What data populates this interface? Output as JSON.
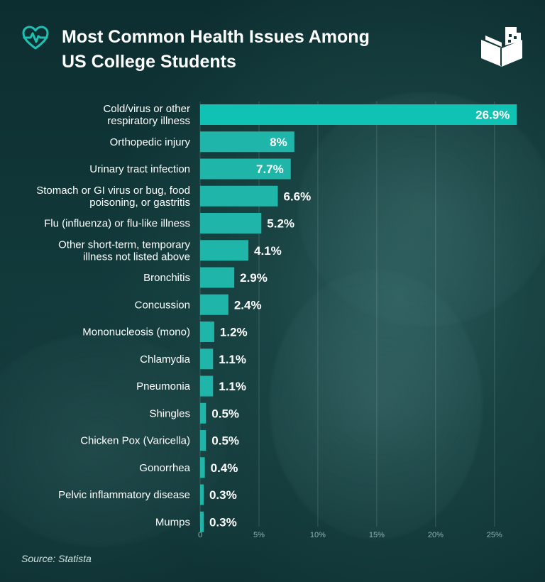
{
  "header": {
    "title_line1": "Most Common Health Issues Among",
    "title_line2": "US College Students"
  },
  "icons": {
    "header_left": "heart-pulse-icon",
    "header_right": "book-brand-icon"
  },
  "colors": {
    "bar": "#1fb5a8",
    "bar_highlight": "#10c2b4",
    "label": "#ffffff",
    "value": "#ffffff"
  },
  "source": "Source: Statista",
  "chart_data": {
    "type": "bar",
    "orientation": "horizontal",
    "categories": [
      [
        "Cold/virus or other",
        "respiratory illness"
      ],
      [
        "Orthopedic injury"
      ],
      [
        "Urinary tract infection"
      ],
      [
        "Stomach or GI virus or bug, food",
        "poisoning, or gastritis"
      ],
      [
        "Flu (influenza) or flu-like illness"
      ],
      [
        "Other short-term, temporary",
        "illness not listed above"
      ],
      [
        "Bronchitis"
      ],
      [
        "Concussion"
      ],
      [
        "Mononucleosis (mono)"
      ],
      [
        "Chlamydia"
      ],
      [
        "Pneumonia"
      ],
      [
        "Shingles"
      ],
      [
        "Chicken Pox (Varicella)"
      ],
      [
        "Gonorrhea"
      ],
      [
        "Pelvic inflammatory disease"
      ],
      [
        "Mumps"
      ]
    ],
    "values": [
      26.9,
      8,
      7.7,
      6.6,
      5.2,
      4.1,
      2.9,
      2.4,
      1.2,
      1.1,
      1.1,
      0.5,
      0.5,
      0.4,
      0.3,
      0.3
    ],
    "value_labels": [
      "26.9%",
      "8%",
      "7.7%",
      "6.6%",
      "5.2%",
      "4.1%",
      "2.9%",
      "2.4%",
      "1.2%",
      "1.1%",
      "1.1%",
      "0.5%",
      "0.5%",
      "0.4%",
      "0.3%",
      "0.3%"
    ],
    "xticks": [
      0,
      5,
      10,
      15,
      20,
      25
    ],
    "xtick_labels": [
      "0",
      "5%",
      "10%",
      "15%",
      "20%",
      "25%"
    ],
    "xlim": [
      0,
      27
    ],
    "grid": true
  }
}
